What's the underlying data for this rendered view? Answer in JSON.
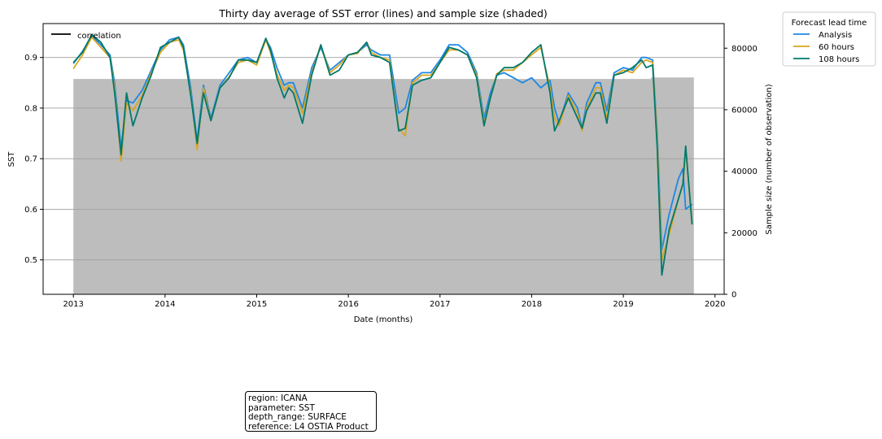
{
  "chart_data": {
    "type": "line",
    "title": "Thirty day average of SST error (lines) and sample size (shaded)",
    "xlabel": "Date (months)",
    "ylabel": "SST",
    "y2label": "Sample size (number of observation)",
    "xlim": [
      2012.67,
      2020.1
    ],
    "ylim": [
      0.432,
      0.967
    ],
    "y2lim": [
      0,
      88000
    ],
    "x_ticks": [
      2013,
      2014,
      2015,
      2016,
      2017,
      2018,
      2019,
      2020
    ],
    "x_tick_labels": [
      "2013",
      "2014",
      "2015",
      "2016",
      "2017",
      "2018",
      "2019",
      "2020"
    ],
    "y_ticks": [
      0.5,
      0.6,
      0.7,
      0.8,
      0.9
    ],
    "y_tick_labels": [
      "0.5",
      "0.6",
      "0.7",
      "0.8",
      "0.9"
    ],
    "y2_ticks": [
      0,
      20000,
      40000,
      60000,
      80000
    ],
    "y2_tick_labels": [
      "0",
      "20000",
      "40000",
      "60000",
      "80000"
    ],
    "grid": "horizontal",
    "legend_left": {
      "label": "correlation",
      "color": "#000000",
      "placement": "upper-left"
    },
    "legend_right": {
      "title": "Forecast lead time",
      "placement": "outside-right",
      "entries": [
        {
          "label": "Analysis",
          "color": "#1e88e5"
        },
        {
          "label": "60 hours",
          "color": "#daa520"
        },
        {
          "label": "108 hours",
          "color": "#00796b"
        }
      ]
    },
    "sample_size": {
      "color": "#bdbdbd",
      "x": [
        2013.0,
        2019.3,
        2019.3,
        2019.77
      ],
      "values": [
        70000,
        70000,
        70500,
        70500
      ]
    },
    "series": [
      {
        "name": "Analysis",
        "color": "#1e88e5",
        "x": [
          2013.0,
          2013.1,
          2013.2,
          2013.3,
          2013.4,
          2013.45,
          2013.52,
          2013.58,
          2013.65,
          2013.75,
          2013.85,
          2013.95,
          2014.05,
          2014.15,
          2014.2,
          2014.28,
          2014.35,
          2014.42,
          2014.5,
          2014.6,
          2014.7,
          2014.8,
          2014.9,
          2015.0,
          2015.1,
          2015.15,
          2015.22,
          2015.3,
          2015.35,
          2015.4,
          2015.5,
          2015.6,
          2015.7,
          2015.8,
          2015.9,
          2016.0,
          2016.1,
          2016.2,
          2016.25,
          2016.35,
          2016.45,
          2016.55,
          2016.62,
          2016.7,
          2016.8,
          2016.9,
          2017.0,
          2017.1,
          2017.2,
          2017.3,
          2017.4,
          2017.48,
          2017.55,
          2017.62,
          2017.7,
          2017.8,
          2017.9,
          2018.0,
          2018.1,
          2018.2,
          2018.25,
          2018.3,
          2018.4,
          2018.5,
          2018.55,
          2018.6,
          2018.7,
          2018.75,
          2018.82,
          2018.9,
          2019.0,
          2019.1,
          2019.2,
          2019.25,
          2019.32,
          2019.37,
          2019.42,
          2019.5,
          2019.6,
          2019.65,
          2019.68,
          2019.75
        ],
        "values": [
          0.888,
          0.912,
          0.943,
          0.925,
          0.905,
          0.85,
          0.72,
          0.815,
          0.81,
          0.835,
          0.875,
          0.915,
          0.935,
          0.94,
          0.925,
          0.84,
          0.735,
          0.845,
          0.78,
          0.845,
          0.87,
          0.895,
          0.9,
          0.89,
          0.935,
          0.92,
          0.88,
          0.845,
          0.85,
          0.85,
          0.8,
          0.88,
          0.92,
          0.875,
          0.89,
          0.905,
          0.91,
          0.925,
          0.915,
          0.905,
          0.905,
          0.79,
          0.8,
          0.855,
          0.87,
          0.87,
          0.895,
          0.925,
          0.925,
          0.91,
          0.87,
          0.78,
          0.83,
          0.865,
          0.87,
          0.86,
          0.85,
          0.86,
          0.84,
          0.855,
          0.8,
          0.77,
          0.83,
          0.8,
          0.76,
          0.81,
          0.85,
          0.85,
          0.795,
          0.87,
          0.88,
          0.875,
          0.9,
          0.9,
          0.895,
          0.75,
          0.52,
          0.59,
          0.66,
          0.68,
          0.6,
          0.61
        ]
      },
      {
        "name": "60 hours",
        "color": "#daa520",
        "x": [
          2013.0,
          2013.1,
          2013.2,
          2013.3,
          2013.4,
          2013.45,
          2013.52,
          2013.58,
          2013.65,
          2013.75,
          2013.85,
          2013.95,
          2014.05,
          2014.15,
          2014.2,
          2014.28,
          2014.35,
          2014.42,
          2014.5,
          2014.6,
          2014.7,
          2014.8,
          2014.9,
          2015.0,
          2015.1,
          2015.15,
          2015.22,
          2015.3,
          2015.35,
          2015.4,
          2015.5,
          2015.6,
          2015.7,
          2015.8,
          2015.9,
          2016.0,
          2016.1,
          2016.2,
          2016.25,
          2016.35,
          2016.45,
          2016.55,
          2016.62,
          2016.7,
          2016.8,
          2016.9,
          2017.0,
          2017.1,
          2017.2,
          2017.3,
          2017.4,
          2017.48,
          2017.55,
          2017.62,
          2017.7,
          2017.8,
          2017.9,
          2018.0,
          2018.1,
          2018.2,
          2018.25,
          2018.3,
          2018.4,
          2018.5,
          2018.55,
          2018.6,
          2018.7,
          2018.75,
          2018.82,
          2018.9,
          2019.0,
          2019.1,
          2019.2,
          2019.25,
          2019.32,
          2019.37,
          2019.42,
          2019.5,
          2019.6,
          2019.65,
          2019.68,
          2019.75
        ],
        "values": [
          0.878,
          0.905,
          0.94,
          0.92,
          0.9,
          0.84,
          0.695,
          0.81,
          0.795,
          0.825,
          0.87,
          0.91,
          0.93,
          0.935,
          0.915,
          0.83,
          0.718,
          0.84,
          0.775,
          0.84,
          0.862,
          0.89,
          0.895,
          0.885,
          0.935,
          0.91,
          0.868,
          0.835,
          0.845,
          0.84,
          0.79,
          0.87,
          0.925,
          0.87,
          0.885,
          0.905,
          0.908,
          0.93,
          0.91,
          0.9,
          0.895,
          0.76,
          0.745,
          0.85,
          0.865,
          0.865,
          0.89,
          0.915,
          0.915,
          0.905,
          0.865,
          0.77,
          0.82,
          0.868,
          0.875,
          0.875,
          0.89,
          0.905,
          0.92,
          0.84,
          0.78,
          0.765,
          0.825,
          0.79,
          0.755,
          0.8,
          0.84,
          0.84,
          0.78,
          0.865,
          0.875,
          0.87,
          0.89,
          0.895,
          0.89,
          0.74,
          0.5,
          0.55,
          0.62,
          0.65,
          0.72,
          0.57
        ]
      },
      {
        "name": "108 hours",
        "color": "#00796b",
        "x": [
          2013.0,
          2013.1,
          2013.2,
          2013.3,
          2013.4,
          2013.45,
          2013.52,
          2013.58,
          2013.65,
          2013.75,
          2013.85,
          2013.95,
          2014.05,
          2014.15,
          2014.2,
          2014.28,
          2014.35,
          2014.42,
          2014.5,
          2014.6,
          2014.7,
          2014.8,
          2014.9,
          2015.0,
          2015.1,
          2015.15,
          2015.22,
          2015.3,
          2015.35,
          2015.4,
          2015.5,
          2015.6,
          2015.7,
          2015.8,
          2015.9,
          2016.0,
          2016.1,
          2016.2,
          2016.25,
          2016.35,
          2016.45,
          2016.55,
          2016.62,
          2016.7,
          2016.8,
          2016.9,
          2017.0,
          2017.1,
          2017.2,
          2017.3,
          2017.4,
          2017.48,
          2017.55,
          2017.62,
          2017.7,
          2017.8,
          2017.9,
          2018.0,
          2018.1,
          2018.2,
          2018.25,
          2018.3,
          2018.4,
          2018.5,
          2018.55,
          2018.6,
          2018.7,
          2018.75,
          2018.82,
          2018.9,
          2019.0,
          2019.1,
          2019.2,
          2019.25,
          2019.32,
          2019.37,
          2019.42,
          2019.5,
          2019.6,
          2019.65,
          2019.68,
          2019.75
        ],
        "values": [
          0.89,
          0.91,
          0.945,
          0.93,
          0.9,
          0.83,
          0.708,
          0.83,
          0.765,
          0.82,
          0.865,
          0.92,
          0.93,
          0.94,
          0.92,
          0.825,
          0.73,
          0.83,
          0.775,
          0.84,
          0.86,
          0.895,
          0.895,
          0.89,
          0.938,
          0.915,
          0.86,
          0.82,
          0.84,
          0.83,
          0.77,
          0.865,
          0.925,
          0.865,
          0.875,
          0.905,
          0.91,
          0.93,
          0.905,
          0.9,
          0.89,
          0.755,
          0.76,
          0.845,
          0.855,
          0.86,
          0.89,
          0.92,
          0.915,
          0.905,
          0.86,
          0.765,
          0.82,
          0.865,
          0.88,
          0.88,
          0.89,
          0.91,
          0.925,
          0.83,
          0.755,
          0.775,
          0.82,
          0.78,
          0.76,
          0.795,
          0.83,
          0.83,
          0.77,
          0.865,
          0.87,
          0.88,
          0.895,
          0.88,
          0.885,
          0.72,
          0.47,
          0.56,
          0.62,
          0.65,
          0.725,
          0.57
        ]
      }
    ]
  },
  "info_box": {
    "lines": [
      "region: ICANA",
      "parameter: SST",
      "depth_range: SURFACE",
      "reference: L4 OSTIA Product"
    ]
  }
}
